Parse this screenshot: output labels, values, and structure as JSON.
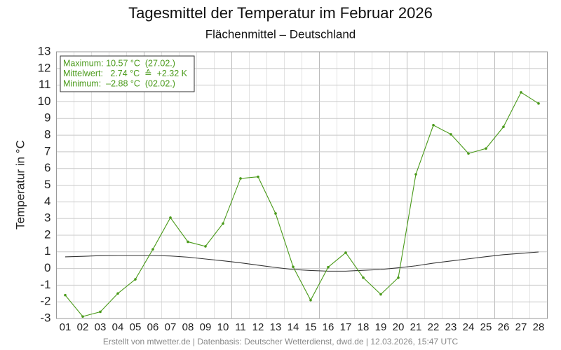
{
  "chart_data": {
    "type": "line",
    "title": "Tagesmittel der Temperatur im Februar 2026",
    "subtitle": "Flächenmittel – Deutschland",
    "y_label": "Temperatur in °C",
    "info_box": [
      "Maximum: 10.57 °C  (27.02.)",
      "Mittelwert:   2.74 °C  ≙  +2.32 K",
      "Minimum:  –2.88 °C  (02.02.)"
    ],
    "footer": "Erstellt von mtwetter.de | Datenbasis: Deutscher Wetterdienst, dwd.de | 12.03.2026, 15:47 UTC",
    "categories": [
      "01",
      "02",
      "03",
      "04",
      "05",
      "06",
      "07",
      "08",
      "09",
      "10",
      "11",
      "12",
      "13",
      "14",
      "15",
      "16",
      "17",
      "18",
      "19",
      "20",
      "21",
      "22",
      "23",
      "24",
      "25",
      "26",
      "27",
      "28"
    ],
    "series": [
      {
        "color": "#333333",
        "values": [
          0.7,
          0.73,
          0.77,
          0.78,
          0.78,
          0.78,
          0.75,
          0.68,
          0.57,
          0.46,
          0.34,
          0.2,
          0.06,
          -0.06,
          -0.12,
          -0.16,
          -0.16,
          -0.11,
          -0.06,
          0.04,
          0.16,
          0.32,
          0.45,
          0.58,
          0.71,
          0.83,
          0.91,
          0.99
        ]
      },
      {
        "color": "#4a9a1a",
        "values": [
          -1.6,
          -2.88,
          -2.6,
          -1.5,
          -0.65,
          1.15,
          3.05,
          1.6,
          1.33,
          2.7,
          5.4,
          5.5,
          3.3,
          0.1,
          -1.9,
          0.08,
          0.95,
          -0.55,
          -1.55,
          -0.55,
          5.65,
          8.6,
          8.05,
          6.9,
          7.2,
          8.5,
          10.57,
          9.9
        ]
      }
    ],
    "ylim": [
      -3,
      13
    ],
    "yticks": [
      -3,
      -2,
      -1,
      0,
      1,
      2,
      3,
      4,
      5,
      6,
      7,
      8,
      9,
      10,
      11,
      12,
      13
    ],
    "grid": true
  }
}
